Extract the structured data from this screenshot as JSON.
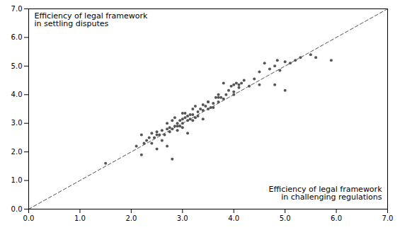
{
  "chart_data": {
    "type": "scatter",
    "xlabel": "Efficiency of legal framework\nin challenging regulations",
    "ylabel": "Efficiency of legal framework\nin settling disputes",
    "xlim": [
      0.0,
      7.0
    ],
    "ylim": [
      0.0,
      7.0
    ],
    "xticks": [
      {
        "value": 0.0,
        "label": "0.0"
      },
      {
        "value": 1.0,
        "label": "1.0"
      },
      {
        "value": 2.0,
        "label": "2.0"
      },
      {
        "value": 3.0,
        "label": "3.0"
      },
      {
        "value": 4.0,
        "label": "4.0"
      },
      {
        "value": 5.0,
        "label": "5.0"
      },
      {
        "value": 6.0,
        "label": "6.0"
      },
      {
        "value": 7.0,
        "label": "7.0"
      }
    ],
    "yticks": [
      {
        "value": 0.0,
        "label": "0.0"
      },
      {
        "value": 1.0,
        "label": "1.0"
      },
      {
        "value": 2.0,
        "label": "2.0"
      },
      {
        "value": 3.0,
        "label": "3.0"
      },
      {
        "value": 4.0,
        "label": "4.0"
      },
      {
        "value": 5.0,
        "label": "5.0"
      },
      {
        "value": 6.0,
        "label": "6.0"
      },
      {
        "value": 7.0,
        "label": "7.0"
      }
    ],
    "color": "#555555",
    "line_style": "dashed",
    "grid": false,
    "x": [
      1.5,
      2.1,
      2.2,
      2.25,
      2.3,
      2.35,
      2.4,
      2.4,
      2.45,
      2.5,
      2.5,
      2.55,
      2.6,
      2.6,
      2.65,
      2.7,
      2.7,
      2.75,
      2.75,
      2.8,
      2.8,
      2.85,
      2.85,
      2.9,
      2.9,
      2.95,
      2.95,
      3.0,
      3.0,
      3.0,
      3.05,
      3.05,
      3.1,
      3.1,
      3.15,
      3.15,
      3.2,
      3.2,
      3.25,
      3.25,
      3.3,
      3.3,
      3.35,
      3.4,
      3.4,
      3.45,
      3.5,
      3.5,
      3.55,
      3.6,
      3.6,
      3.65,
      3.7,
      3.7,
      3.75,
      3.8,
      3.85,
      3.9,
      3.95,
      4.0,
      4.0,
      4.05,
      4.1,
      4.15,
      4.2,
      4.3,
      4.4,
      4.5,
      4.6,
      4.7,
      4.8,
      4.85,
      4.9,
      5.0,
      5.1,
      5.2,
      5.3,
      5.5,
      5.6,
      5.9,
      2.2,
      2.5,
      2.7,
      2.8,
      2.9,
      3.0,
      3.1,
      3.2,
      3.4,
      3.5,
      3.7,
      3.8,
      4.0,
      4.1,
      4.5,
      4.8,
      5.0
    ],
    "values": [
      1.6,
      2.2,
      2.6,
      2.3,
      2.4,
      2.5,
      2.3,
      2.65,
      2.5,
      2.6,
      2.7,
      2.6,
      2.4,
      2.75,
      2.6,
      2.8,
      3.0,
      2.7,
      2.85,
      2.8,
      3.1,
      2.9,
      3.2,
      2.75,
      3.0,
      3.1,
      2.9,
      3.0,
      3.15,
      2.85,
      3.2,
      3.35,
      3.1,
      3.25,
      3.3,
      3.15,
      3.1,
      3.3,
      3.2,
      3.6,
      3.4,
      3.25,
      3.5,
      3.45,
      3.65,
      3.6,
      3.5,
      3.75,
      3.55,
      3.7,
      3.55,
      3.9,
      3.75,
      4.0,
      3.9,
      3.85,
      4.0,
      4.15,
      4.3,
      4.0,
      4.35,
      4.4,
      4.25,
      4.4,
      4.5,
      4.3,
      4.55,
      4.8,
      5.1,
      4.9,
      5.0,
      5.2,
      4.85,
      5.15,
      5.1,
      5.2,
      5.3,
      5.4,
      5.3,
      5.2,
      1.9,
      2.1,
      2.2,
      1.75,
      2.9,
      3.35,
      2.65,
      3.5,
      3.15,
      3.75,
      3.9,
      4.4,
      4.1,
      4.35,
      4.35,
      4.35,
      4.15
    ]
  }
}
